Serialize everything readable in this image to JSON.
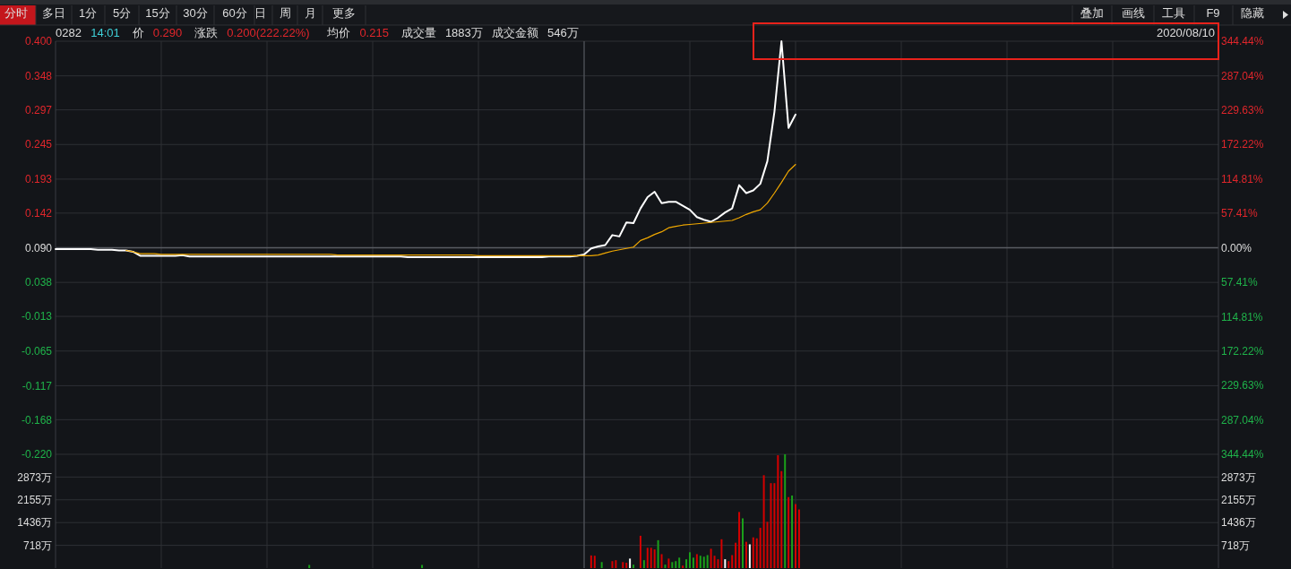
{
  "chart_data": [
    {
      "type": "line",
      "annotations": [
        "分时",
        "多日",
        "1分",
        "5分",
        "15分",
        "30分",
        "60分",
        "日",
        "周",
        "月",
        "更多",
        "叠加",
        "画线",
        "工具",
        "F9",
        "隐藏",
        "0282",
        "14:01",
        "价",
        "0.290",
        "涨跌",
        "0.200(222.22%)",
        "均价",
        "0.215",
        "成交量",
        "1883万",
        "成交金额",
        "546万",
        "2020/08/10"
      ],
      "categories": [
        null,
        null,
        null,
        null,
        null,
        null,
        null,
        null,
        null,
        null,
        null,
        null,
        null,
        null,
        null,
        null,
        null,
        null,
        null,
        null,
        null,
        null,
        null,
        null,
        null,
        null,
        null,
        null,
        null,
        null,
        null,
        null,
        null,
        null,
        null,
        null,
        null,
        null,
        null,
        null,
        null,
        null,
        null,
        null,
        null,
        null,
        null,
        null,
        null,
        null,
        null,
        null,
        null,
        null,
        null,
        null,
        null,
        null,
        null,
        null,
        null,
        null,
        null,
        null,
        null,
        null,
        null,
        null,
        null,
        null,
        null,
        null,
        null,
        null,
        null,
        null,
        null,
        null,
        null,
        null,
        null,
        null,
        null,
        null,
        null,
        null,
        null,
        null,
        null,
        null,
        null,
        null,
        null,
        null,
        null,
        null,
        null,
        null,
        null,
        null,
        null,
        null,
        null,
        null,
        null,
        null,
        null,
        null,
        null,
        null,
        null,
        null,
        null,
        null,
        null,
        null,
        null,
        null,
        null,
        null,
        null,
        null,
        null,
        null,
        null,
        null,
        null,
        null,
        null,
        null,
        null,
        null,
        null,
        null,
        null,
        null,
        null,
        null,
        null,
        null,
        null,
        null,
        null,
        null,
        null,
        null,
        null,
        null,
        null,
        null,
        null,
        null,
        null,
        null,
        null,
        null,
        null,
        null,
        null,
        null,
        null,
        null,
        null,
        null,
        null,
        null
      ],
      "series": [
        {
          "color": "#ffffff",
          "values": [
            0.088,
            0.088,
            0.088,
            0.088,
            0.088,
            0.088,
            0.087,
            0.087,
            0.087,
            0.086,
            0.086,
            0.084,
            0.078,
            0.078,
            0.078,
            0.078,
            0.078,
            0.078,
            0.079,
            0.077,
            0.077,
            0.077,
            0.077,
            0.077,
            0.077,
            0.077,
            0.077,
            0.077,
            0.077,
            0.077,
            0.077,
            0.077,
            0.077,
            0.077,
            0.077,
            0.077,
            0.077,
            0.077,
            0.077,
            0.077,
            0.077,
            0.077,
            0.077,
            0.077,
            0.077,
            0.077,
            0.077,
            0.077,
            0.077,
            0.077,
            0.076,
            0.076,
            0.076,
            0.076,
            0.076,
            0.076,
            0.076,
            0.076,
            0.076,
            0.076,
            0.076,
            0.076,
            0.076,
            0.076,
            0.076,
            0.076,
            0.076,
            0.076,
            0.076,
            0.076,
            0.077,
            0.077,
            0.077,
            0.077,
            0.078,
            0.08,
            0.089,
            0.092,
            0.094,
            0.109,
            0.107,
            0.128,
            0.127,
            0.149,
            0.166,
            0.174,
            0.157,
            0.159,
            0.159,
            0.153,
            0.147,
            0.136,
            0.132,
            0.129,
            0.135,
            0.143,
            0.149,
            0.184,
            0.172,
            0.176,
            0.186,
            0.22,
            0.294,
            0.4,
            0.27,
            0.29,
            null,
            null,
            null,
            null,
            null,
            null,
            null,
            null,
            null,
            null,
            null,
            null,
            null,
            null,
            null,
            null,
            null,
            null,
            null,
            null,
            null,
            null,
            null,
            null,
            null,
            null,
            null,
            null,
            null,
            null,
            null,
            null,
            null,
            null,
            null,
            null,
            null,
            null,
            null,
            null,
            null,
            null,
            null,
            null,
            null,
            null,
            null,
            null,
            null,
            null,
            null,
            null,
            null,
            null,
            null,
            null,
            null,
            null,
            null,
            null
          ]
        },
        {
          "color": "#f0a800",
          "values": [
            null,
            null,
            null,
            null,
            null,
            null,
            null,
            null,
            null,
            null,
            0.086,
            0.084,
            0.081,
            0.081,
            0.081,
            0.08,
            0.08,
            0.08,
            0.08,
            0.08,
            0.08,
            0.08,
            0.08,
            0.08,
            0.08,
            0.08,
            0.08,
            0.08,
            0.08,
            0.08,
            0.08,
            0.08,
            0.08,
            0.08,
            0.08,
            0.08,
            0.08,
            0.08,
            0.08,
            0.08,
            0.079,
            0.079,
            0.079,
            0.079,
            0.079,
            0.079,
            0.079,
            0.079,
            0.079,
            0.079,
            0.079,
            0.079,
            0.079,
            0.079,
            0.079,
            0.079,
            0.079,
            0.079,
            0.079,
            0.079,
            0.078,
            0.078,
            0.078,
            0.078,
            0.078,
            0.078,
            0.078,
            0.078,
            0.078,
            0.078,
            0.078,
            0.078,
            0.078,
            0.078,
            0.078,
            0.078,
            0.078,
            0.079,
            0.082,
            0.085,
            0.087,
            0.089,
            0.091,
            0.101,
            0.105,
            0.11,
            0.114,
            0.12,
            0.122,
            0.124,
            0.125,
            0.126,
            0.127,
            0.128,
            0.129,
            0.13,
            0.131,
            0.135,
            0.14,
            0.144,
            0.147,
            0.157,
            0.172,
            0.188,
            0.205,
            0.215,
            null,
            null,
            null,
            null,
            null,
            null,
            null,
            null,
            null,
            null,
            null,
            null,
            null,
            null,
            null,
            null,
            null,
            null,
            null,
            null,
            null,
            null,
            null,
            null,
            null,
            null,
            null,
            null,
            null,
            null,
            null,
            null,
            null,
            null,
            null,
            null,
            null,
            null,
            null,
            null,
            null,
            null,
            null,
            null,
            null,
            null,
            null,
            null,
            null,
            null,
            null,
            null,
            null,
            null,
            null,
            null,
            null,
            null,
            null,
            null
          ]
        }
      ],
      "ylim": [
        -0.22,
        0.4
      ],
      "yticks": [
        {
          "value": 0.4,
          "label": "0.400"
        },
        0.348,
        0.297,
        0.245,
        0.193,
        0.142,
        {
          "value": 0.09,
          "label": "0.090"
        },
        0.038,
        -0.013,
        -0.065,
        -0.117,
        -0.168,
        {
          "value": -0.22,
          "label": "-0.220"
        }
      ],
      "y2lim": [
        -344.44,
        344.44
      ],
      "y2ticks": [
        {
          "value": 344.44,
          "label": "344.44%"
        },
        {
          "value": 287.04,
          "label": "287.04%"
        },
        {
          "value": 229.63,
          "label": "229.63%"
        },
        {
          "value": 172.22,
          "label": "172.22%"
        },
        {
          "value": 114.81,
          "label": "114.81%"
        },
        {
          "value": 57.41,
          "label": "57.41%"
        },
        {
          "value": 0,
          "label": "0.00%"
        },
        {
          "value": -57.41,
          "label": "57.41%"
        },
        {
          "value": -114.81,
          "label": "114.81%"
        },
        {
          "value": -172.22,
          "label": "172.22%"
        },
        {
          "value": -229.63,
          "label": "229.63%"
        },
        {
          "value": -287.04,
          "label": "287.04%"
        },
        {
          "value": -344.44,
          "label": "344.44%"
        }
      ],
      "ref_lines": [
        {
          "axis": "y",
          "value": 0.09,
          "color": "#5a5d63"
        }
      ],
      "grid": true,
      "tick_labels": "y",
      "line_style": "solid"
    },
    {
      "type": "bar",
      "categories": [
        null,
        null,
        null,
        null,
        null,
        null,
        null,
        null,
        null,
        null,
        null,
        null,
        null,
        null,
        null,
        null,
        null,
        null,
        null,
        null,
        null,
        null,
        null,
        null,
        null,
        null,
        null,
        null,
        null,
        null,
        null,
        null,
        null,
        null,
        null,
        null,
        null,
        null,
        null,
        null,
        null,
        null,
        null,
        null,
        null,
        null,
        null,
        null,
        null,
        null,
        null,
        null,
        null,
        null,
        null,
        null,
        null,
        null,
        null,
        null,
        null,
        null,
        null,
        null,
        null,
        null,
        null,
        null,
        null,
        null,
        null,
        null,
        null,
        null,
        null,
        null,
        null,
        null,
        null,
        null,
        null,
        null,
        null,
        null,
        null,
        null,
        null,
        null,
        null,
        null,
        null,
        null,
        null,
        null,
        null,
        null,
        null,
        null,
        null,
        null,
        null,
        null,
        null,
        null,
        null,
        null,
        null,
        null,
        null,
        null,
        null,
        null,
        null,
        null,
        null,
        null,
        null,
        null,
        null,
        null,
        null,
        null,
        null,
        null,
        null,
        null,
        null,
        null,
        null,
        null,
        null,
        null,
        null,
        null,
        null,
        null,
        null,
        null,
        null,
        null,
        null,
        null,
        null,
        null,
        null,
        null,
        null,
        null,
        null,
        null,
        null,
        null,
        null,
        null,
        null,
        null,
        null,
        null,
        null,
        null,
        null,
        null,
        null,
        null,
        null,
        null,
        null,
        null,
        null,
        null,
        null,
        null,
        null,
        null,
        null,
        null,
        null,
        null,
        null,
        null,
        null,
        null,
        null,
        null,
        null,
        null,
        null,
        null,
        null,
        null,
        null,
        null,
        null,
        null,
        null,
        null,
        null,
        null,
        null,
        null,
        null,
        null,
        null,
        null,
        null,
        null,
        null,
        null,
        null,
        null,
        null,
        null,
        null,
        null,
        null,
        null,
        null,
        null,
        null,
        null,
        null,
        null,
        null,
        null,
        null,
        null,
        null,
        null,
        null,
        null,
        null,
        null,
        null,
        null,
        null,
        null,
        null,
        null,
        null,
        null,
        null,
        null,
        null,
        null,
        null,
        null,
        null,
        null,
        null,
        null,
        null,
        null,
        null,
        null,
        null,
        null,
        null,
        null,
        null,
        null,
        null,
        null,
        null,
        null,
        null,
        null,
        null,
        null,
        null,
        null,
        null,
        null,
        null,
        null,
        null,
        null,
        null,
        null,
        null,
        null,
        null,
        null,
        null,
        null,
        null,
        null,
        null,
        null,
        null,
        null,
        null,
        null,
        null,
        null,
        null,
        null,
        null,
        null,
        null,
        null,
        null,
        null,
        null,
        null,
        null,
        null,
        null,
        null,
        null,
        null,
        null,
        null,
        null,
        null,
        null,
        null,
        null,
        null,
        null,
        null,
        null,
        null,
        null,
        null,
        null,
        null,
        null,
        null,
        null,
        null,
        null
      ],
      "values": [
        null,
        null,
        null,
        null,
        null,
        null,
        null,
        null,
        null,
        null,
        null,
        null,
        null,
        null,
        null,
        null,
        null,
        null,
        null,
        null,
        null,
        null,
        null,
        null,
        null,
        null,
        null,
        null,
        null,
        null,
        null,
        null,
        null,
        null,
        null,
        null,
        null,
        null,
        null,
        null,
        null,
        null,
        null,
        null,
        null,
        null,
        null,
        null,
        null,
        null,
        null,
        null,
        null,
        null,
        null,
        null,
        null,
        null,
        null,
        null,
        null,
        null,
        null,
        null,
        null,
        null,
        null,
        null,
        null,
        null,
        null,
        null,
        100,
        null,
        null,
        null,
        null,
        null,
        null,
        null,
        null,
        null,
        null,
        null,
        null,
        null,
        null,
        null,
        null,
        null,
        null,
        null,
        null,
        null,
        null,
        null,
        null,
        null,
        null,
        null,
        null,
        null,
        null,
        null,
        100,
        null,
        null,
        null,
        null,
        null,
        null,
        null,
        null,
        null,
        null,
        null,
        null,
        null,
        null,
        null,
        null,
        null,
        null,
        null,
        null,
        null,
        null,
        null,
        null,
        null,
        null,
        null,
        null,
        null,
        null,
        null,
        null,
        null,
        null,
        null,
        null,
        null,
        null,
        null,
        null,
        null,
        null,
        null,
        null,
        null,
        null,
        null,
        400,
        390,
        null,
        190,
        null,
        null,
        220,
        250,
        null,
        190,
        170,
        300,
        110,
        null,
        1020,
        250,
        640,
        640,
        590,
        880,
        440,
        110,
        300,
        190,
        220,
        330,
        80,
        280,
        500,
        330,
        440,
        390,
        360,
        410,
        610,
        390,
        280,
        910,
        280,
        220,
        410,
        800,
        1770,
        1570,
        830,
        750,
        970,
        940,
        1270,
        2930,
        1460,
        2680,
        2680,
        3560,
        3060,
        3590,
        2240,
        2290,
        2020,
        1850,
        null,
        null,
        null,
        null,
        null,
        null,
        null,
        null,
        null,
        null,
        null,
        null,
        null,
        null,
        null,
        null,
        null,
        null,
        null,
        null,
        null,
        null,
        null,
        null,
        null,
        null,
        null,
        null,
        null,
        null,
        null,
        null,
        null,
        null,
        null,
        null,
        null,
        null,
        null,
        null,
        null,
        null,
        null,
        null,
        null,
        null,
        null,
        null,
        null,
        null,
        null,
        null,
        null,
        null,
        null,
        null,
        null,
        null,
        null,
        null,
        null,
        null,
        null,
        null,
        null,
        null,
        null,
        null,
        null,
        null,
        null,
        null,
        null,
        null,
        null,
        null,
        null,
        null,
        null,
        null,
        null,
        null,
        null,
        null,
        null,
        null,
        null,
        null,
        null,
        null,
        null,
        null,
        null,
        null,
        null,
        null,
        null,
        null,
        null,
        null,
        null,
        null,
        null,
        null,
        null,
        null,
        null,
        null,
        null,
        null,
        null,
        null,
        null,
        null,
        null,
        null,
        null,
        null,
        null
      ],
      "colors": [
        null,
        null,
        null,
        null,
        null,
        null,
        null,
        null,
        null,
        null,
        null,
        null,
        null,
        null,
        null,
        null,
        null,
        null,
        null,
        null,
        null,
        null,
        null,
        null,
        null,
        null,
        null,
        null,
        null,
        null,
        null,
        null,
        null,
        null,
        null,
        null,
        null,
        null,
        null,
        null,
        null,
        null,
        null,
        null,
        null,
        null,
        null,
        null,
        null,
        null,
        null,
        null,
        null,
        null,
        null,
        null,
        null,
        null,
        null,
        null,
        null,
        null,
        null,
        null,
        null,
        null,
        null,
        null,
        null,
        null,
        null,
        null,
        "#1aa01a",
        null,
        null,
        null,
        null,
        null,
        null,
        null,
        null,
        null,
        null,
        null,
        null,
        null,
        null,
        null,
        null,
        null,
        null,
        null,
        null,
        null,
        null,
        null,
        null,
        null,
        null,
        null,
        null,
        null,
        null,
        null,
        "#1aa01a",
        null,
        null,
        null,
        null,
        null,
        null,
        null,
        null,
        null,
        null,
        null,
        null,
        null,
        null,
        null,
        null,
        null,
        null,
        null,
        null,
        null,
        null,
        null,
        null,
        null,
        null,
        null,
        null,
        null,
        null,
        null,
        null,
        null,
        null,
        null,
        null,
        null,
        null,
        null,
        null,
        null,
        null,
        null,
        null,
        null,
        null,
        null,
        "#d40000",
        "#d40000",
        null,
        "#1aa01a",
        null,
        null,
        "#d40000",
        "#d40000",
        null,
        "#d40000",
        "#d40000",
        "#ffffff",
        "#1aa01a",
        null,
        "#d40000",
        "#1aa01a",
        "#d40000",
        "#d40000",
        "#d40000",
        "#1aa01a",
        "#d40000",
        "#1aa01a",
        "#d40000",
        "#1aa01a",
        "#1aa01a",
        "#1aa01a",
        "#d40000",
        "#1aa01a",
        "#1aa01a",
        "#1aa01a",
        "#d40000",
        "#1aa01a",
        "#1aa01a",
        "#1aa01a",
        "#d40000",
        "#d40000",
        "#d40000",
        "#d40000",
        "#ffffff",
        "#d40000",
        "#d40000",
        "#d40000",
        "#d40000",
        "#1aa01a",
        "#d40000",
        "#ffffff",
        "#d40000",
        "#d40000",
        "#d40000",
        "#d40000",
        "#d40000",
        "#d40000",
        "#d40000",
        "#d40000",
        "#d40000",
        "#1aa01a",
        "#d40000",
        "#1aa01a",
        "#d40000",
        "#d40000",
        null,
        null,
        null,
        null,
        null,
        null,
        null,
        null,
        null,
        null,
        null,
        null,
        null,
        null,
        null,
        null,
        null,
        null,
        null,
        null,
        null,
        null,
        null,
        null,
        null,
        null,
        null,
        null,
        null,
        null,
        null,
        null,
        null,
        null,
        null,
        null,
        null,
        null,
        null,
        null,
        null,
        null,
        null,
        null,
        null,
        null,
        null,
        null,
        null,
        null,
        null,
        null,
        null,
        null,
        null,
        null,
        null,
        null,
        null,
        null,
        null,
        null,
        null,
        null,
        null,
        null,
        null,
        null,
        null,
        null,
        null,
        null,
        null,
        null,
        null,
        null,
        null,
        null,
        null,
        null,
        null,
        null,
        null,
        null,
        null,
        null,
        null,
        null,
        null,
        null,
        null,
        null,
        null,
        null,
        null,
        null,
        null,
        null,
        null,
        null,
        null,
        null,
        null,
        null,
        null,
        null,
        null,
        null,
        null,
        null,
        null,
        null,
        null,
        null,
        null,
        null,
        null,
        null,
        null
      ],
      "ylim": [
        0,
        3590
      ],
      "yticks": [
        {
          "value": 718,
          "label": "718万"
        },
        {
          "value": 1436,
          "label": "1436万"
        },
        {
          "value": 2155,
          "label": "2155万"
        },
        {
          "value": 2873,
          "label": "2873万"
        }
      ],
      "y2lim": [
        0,
        3590
      ],
      "y2ticks": [
        {
          "value": 718,
          "label": "718万"
        },
        {
          "value": 1436,
          "label": "1436万"
        },
        {
          "value": 2155,
          "label": "2155万"
        },
        {
          "value": 2873,
          "label": "2873万"
        }
      ],
      "grid": true,
      "tick_labels": "y"
    }
  ]
}
